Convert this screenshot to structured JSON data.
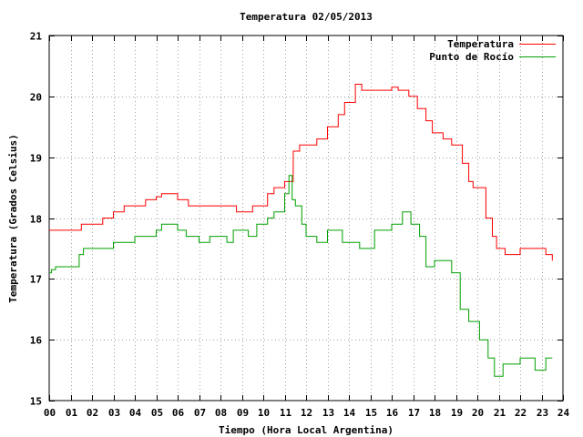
{
  "chart_data": {
    "type": "line",
    "title": "Temperatura 02/05/2013",
    "xlabel": "Tiempo (Hora Local Argentina)",
    "ylabel": "Temperatura (Grados Celsius)",
    "xlim": [
      0,
      24
    ],
    "ylim": [
      15,
      21
    ],
    "x_ticks": [
      "00",
      "01",
      "02",
      "03",
      "04",
      "05",
      "06",
      "07",
      "08",
      "09",
      "10",
      "11",
      "12",
      "13",
      "14",
      "15",
      "16",
      "17",
      "18",
      "19",
      "20",
      "21",
      "22",
      "23",
      "24"
    ],
    "y_ticks": [
      "15",
      "16",
      "17",
      "18",
      "19",
      "20",
      "21"
    ],
    "grid": true,
    "legend_position": "top-right",
    "series": [
      {
        "name": "Temperatura",
        "color": "#ff0000",
        "x": [
          0,
          1.5,
          1.5,
          2.5,
          2.5,
          3.0,
          3.0,
          3.5,
          3.5,
          4.5,
          4.5,
          5.0,
          5.0,
          5.25,
          5.25,
          6.0,
          6.0,
          6.5,
          6.5,
          8.75,
          8.75,
          9.5,
          9.5,
          10.2,
          10.2,
          10.5,
          10.5,
          11.0,
          11.0,
          11.4,
          11.4,
          11.7,
          11.7,
          12.1,
          12.1,
          12.5,
          12.5,
          13.0,
          13.0,
          13.5,
          13.5,
          13.8,
          13.8,
          14.3,
          14.3,
          14.6,
          14.6,
          14.7,
          14.7,
          16.0,
          16.0,
          16.3,
          16.3,
          16.8,
          16.8,
          17.2,
          17.2,
          17.6,
          17.6,
          17.9,
          17.9,
          18.4,
          18.4,
          18.8,
          18.8,
          19.3,
          19.3,
          19.6,
          19.6,
          19.8,
          19.8,
          20.4,
          20.4,
          20.7,
          20.7,
          20.9,
          20.9,
          21.3,
          21.3,
          21.6,
          21.6,
          22.0,
          22.0,
          23.2,
          23.2,
          23.5,
          23.5
        ],
        "y": [
          17.8,
          17.8,
          17.9,
          17.9,
          18.0,
          18.0,
          18.1,
          18.1,
          18.2,
          18.2,
          18.3,
          18.3,
          18.35,
          18.35,
          18.4,
          18.4,
          18.3,
          18.3,
          18.2,
          18.2,
          18.1,
          18.1,
          18.2,
          18.2,
          18.4,
          18.4,
          18.5,
          18.5,
          18.6,
          18.6,
          19.1,
          19.1,
          19.2,
          19.2,
          19.2,
          19.2,
          19.3,
          19.3,
          19.5,
          19.5,
          19.7,
          19.7,
          19.9,
          19.9,
          20.2,
          20.2,
          20.1,
          20.1,
          20.1,
          20.1,
          20.15,
          20.15,
          20.1,
          20.1,
          20.0,
          20.0,
          19.8,
          19.8,
          19.6,
          19.6,
          19.4,
          19.4,
          19.3,
          19.3,
          19.2,
          19.2,
          18.9,
          18.9,
          18.6,
          18.6,
          18.5,
          18.5,
          18.0,
          18.0,
          17.7,
          17.7,
          17.5,
          17.5,
          17.4,
          17.4,
          17.4,
          17.4,
          17.5,
          17.5,
          17.4,
          17.4,
          17.3
        ]
      },
      {
        "name": "Punto de Rocío",
        "color": "#00a000",
        "x": [
          0,
          0.1,
          0.1,
          0.3,
          0.3,
          1.4,
          1.4,
          1.6,
          1.6,
          3.0,
          3.0,
          4.0,
          4.0,
          5.0,
          5.0,
          5.25,
          5.25,
          6.0,
          6.0,
          6.4,
          6.4,
          7.0,
          7.0,
          7.5,
          7.5,
          8.3,
          8.3,
          8.6,
          8.6,
          9.3,
          9.3,
          9.7,
          9.7,
          10.2,
          10.2,
          10.5,
          10.5,
          11.0,
          11.0,
          11.2,
          11.2,
          11.35,
          11.35,
          11.5,
          11.5,
          11.8,
          11.8,
          12.0,
          12.0,
          12.5,
          12.5,
          13.0,
          13.0,
          13.7,
          13.7,
          14.5,
          14.5,
          15.2,
          15.2,
          16.0,
          16.0,
          16.5,
          16.5,
          16.9,
          16.9,
          17.3,
          17.3,
          17.6,
          17.6,
          18.0,
          18.0,
          18.8,
          18.8,
          19.2,
          19.2,
          19.6,
          19.6,
          20.1,
          20.1,
          20.5,
          20.5,
          20.8,
          20.8,
          21.2,
          21.2,
          22.0,
          22.0,
          22.7,
          22.7,
          23.2,
          23.2,
          23.5
        ],
        "y": [
          17.1,
          17.1,
          17.15,
          17.15,
          17.2,
          17.2,
          17.4,
          17.4,
          17.5,
          17.5,
          17.6,
          17.6,
          17.7,
          17.7,
          17.8,
          17.8,
          17.9,
          17.9,
          17.8,
          17.8,
          17.7,
          17.7,
          17.6,
          17.6,
          17.7,
          17.7,
          17.6,
          17.6,
          17.8,
          17.8,
          17.7,
          17.7,
          17.9,
          17.9,
          18.0,
          18.0,
          18.1,
          18.1,
          18.4,
          18.4,
          18.7,
          18.7,
          18.3,
          18.3,
          18.2,
          18.2,
          17.9,
          17.9,
          17.7,
          17.7,
          17.6,
          17.6,
          17.8,
          17.8,
          17.6,
          17.6,
          17.5,
          17.5,
          17.8,
          17.8,
          17.9,
          17.9,
          18.1,
          18.1,
          17.9,
          17.9,
          17.7,
          17.7,
          17.2,
          17.2,
          17.3,
          17.3,
          17.1,
          17.1,
          16.5,
          16.5,
          16.3,
          16.3,
          16.0,
          16.0,
          15.7,
          15.7,
          15.4,
          15.4,
          15.6,
          15.6,
          15.7,
          15.7,
          15.5,
          15.5,
          15.7,
          15.7
        ]
      }
    ]
  }
}
